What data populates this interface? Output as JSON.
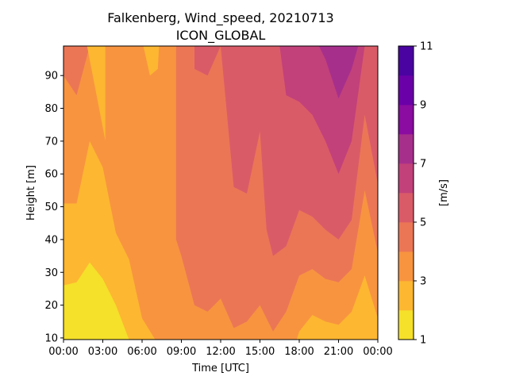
{
  "chart_data": {
    "type": "contourf",
    "title": "Falkenberg, Wind_speed, 20210713",
    "subtitle": "ICON_GLOBAL",
    "xlabel": "Time [UTC]",
    "ylabel": "Height [m]",
    "colorbar_label": "[m/s]",
    "xlim": [
      0,
      24
    ],
    "ylim": [
      9.5,
      99
    ],
    "x_ticks": [
      {
        "value": 0,
        "label": "00:00"
      },
      {
        "value": 3,
        "label": "03:00"
      },
      {
        "value": 6,
        "label": "06:00"
      },
      {
        "value": 9,
        "label": "09:00"
      },
      {
        "value": 12,
        "label": "12:00"
      },
      {
        "value": 15,
        "label": "15:00"
      },
      {
        "value": 18,
        "label": "18:00"
      },
      {
        "value": 21,
        "label": "21:00"
      },
      {
        "value": 24,
        "label": "00:00"
      }
    ],
    "y_ticks": [
      10,
      20,
      30,
      40,
      50,
      60,
      70,
      80,
      90
    ],
    "colorbar_ticks": [
      1,
      3,
      5,
      7,
      9,
      11
    ],
    "levels": [
      1,
      2,
      3,
      4,
      5,
      6,
      7,
      8,
      9,
      10,
      11
    ],
    "colors": [
      "#f5e02a",
      "#fdb731",
      "#f89440",
      "#eb7656",
      "#da5b68",
      "#c2417a",
      "#a72f8c",
      "#8a0ca0",
      "#6a00a8",
      "#4a03a1",
      "#24098f"
    ],
    "bands": [
      {
        "level": [
          1,
          2
        ],
        "boundary_upper": [
          [
            0,
            26
          ],
          [
            1,
            27
          ],
          [
            2,
            33
          ],
          [
            3,
            28
          ],
          [
            4,
            20
          ],
          [
            5,
            9.5
          ]
        ]
      },
      {
        "level": [
          2,
          3
        ],
        "boundary_upper": [
          [
            0,
            51
          ],
          [
            1,
            51
          ],
          [
            2,
            70
          ],
          [
            3,
            62
          ],
          [
            4,
            42
          ],
          [
            5,
            34
          ],
          [
            6,
            16
          ],
          [
            7,
            9.5
          ]
        ],
        "extra_regions": [
          {
            "region": "right-bottom",
            "boundary_upper": [
              [
                17.8,
                9.5
              ],
              [
                18,
                12
              ],
              [
                19,
                17
              ],
              [
                20,
                15
              ],
              [
                21,
                14
              ],
              [
                22,
                18
              ],
              [
                23,
                29
              ],
              [
                24,
                16
              ]
            ]
          },
          {
            "region": "tongue",
            "boundary": [
              [
                1.8,
                99
              ],
              [
                3.2,
                99
              ],
              [
                3.2,
                70
              ]
            ]
          }
        ]
      },
      {
        "level": [
          3,
          4
        ],
        "description": "fills most of the lower-left region above the 2-3 band"
      },
      {
        "level": [
          4,
          5
        ],
        "boundary_lower": [
          [
            8.6,
            99
          ],
          [
            8.6,
            40
          ],
          [
            9,
            35
          ],
          [
            10,
            20
          ],
          [
            11,
            18
          ],
          [
            12,
            22
          ],
          [
            13,
            13
          ],
          [
            14,
            15
          ],
          [
            15,
            20
          ],
          [
            16,
            12
          ],
          [
            17,
            18
          ],
          [
            18,
            29
          ],
          [
            19,
            31
          ],
          [
            20,
            28
          ],
          [
            21,
            27
          ],
          [
            22,
            31
          ],
          [
            23,
            55
          ],
          [
            24,
            36
          ]
        ]
      },
      {
        "level": [
          5,
          6
        ],
        "boundary_lower": [
          [
            10,
            99
          ],
          [
            10,
            92
          ],
          [
            11,
            90
          ],
          [
            12,
            99
          ],
          [
            13,
            56
          ],
          [
            14,
            54
          ],
          [
            15,
            73
          ],
          [
            15.5,
            43
          ],
          [
            16,
            35
          ],
          [
            17,
            38
          ],
          [
            18,
            49
          ],
          [
            19,
            47
          ],
          [
            20,
            43
          ],
          [
            21,
            40
          ],
          [
            22,
            46
          ],
          [
            23,
            78
          ],
          [
            24,
            57
          ]
        ]
      },
      {
        "level": [
          6,
          7
        ],
        "boundary_lower": [
          [
            16.5,
            99
          ],
          [
            17,
            84
          ],
          [
            18,
            82
          ],
          [
            19,
            78
          ],
          [
            20,
            70
          ],
          [
            21,
            60
          ],
          [
            22,
            70
          ],
          [
            23,
            99
          ]
        ]
      },
      {
        "level": [
          7,
          8
        ],
        "boundary_lower": [
          [
            19.5,
            99
          ],
          [
            20,
            95
          ],
          [
            21,
            83
          ],
          [
            22,
            92
          ],
          [
            22.5,
            99
          ]
        ]
      }
    ]
  }
}
